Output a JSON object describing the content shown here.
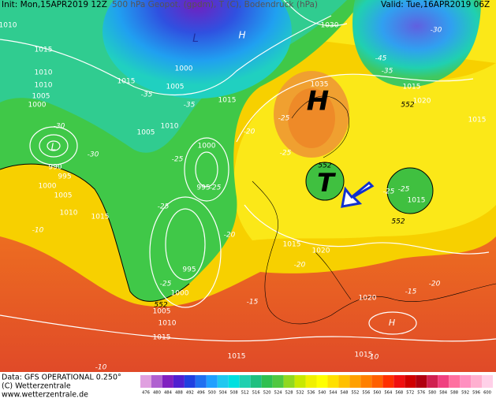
{
  "header": {
    "init": "Init: Mon,15APR2019 12Z",
    "title": "500 hPa Geopot. (gpdm), T (C), Bodendruck (hPa)",
    "valid": "Valid: Tue,16APR2019 06Z"
  },
  "footer": {
    "lines": [
      "Data: GFS OPERATIONAL 0.250°",
      "(C) Wetterzentrale",
      "www.wetterzentrale.de"
    ]
  },
  "colorbar": {
    "ticks": [
      476,
      480,
      484,
      488,
      492,
      496,
      500,
      504,
      508,
      512,
      516,
      520,
      524,
      528,
      532,
      536,
      540,
      544,
      548,
      552,
      556,
      560,
      564,
      568,
      572,
      576,
      580,
      584,
      588,
      592,
      596,
      600
    ]
  },
  "map": {
    "pressure_systems": [
      "H",
      "T",
      "L",
      "L",
      "H",
      "H"
    ],
    "isobar_labels": [
      "1010",
      "1015",
      "1010",
      "1010",
      "1005",
      "1000",
      "1015",
      "1000",
      "1005",
      "1015",
      "1010",
      "1005",
      "1000",
      "990",
      "995",
      "1000",
      "1005",
      "1010",
      "1015",
      "995",
      "995",
      "1000",
      "1005",
      "1010",
      "1015",
      "1030",
      "1035",
      "1015",
      "1020",
      "1015",
      "1015",
      "1015",
      "1020",
      "1020",
      "1015",
      "1015"
    ],
    "temperature_labels": [
      "-30",
      "-45",
      "-35",
      "-35",
      "-35",
      "-30",
      "-30",
      "-25",
      "-20",
      "-25",
      "-25",
      "-25",
      "-25",
      "-25",
      "-25",
      "-20",
      "-20",
      "-20",
      "-15",
      "-15",
      "-10",
      "-10",
      "-10",
      "-25"
    ],
    "height_labels": [
      "552",
      "552",
      "552",
      "552"
    ]
  }
}
